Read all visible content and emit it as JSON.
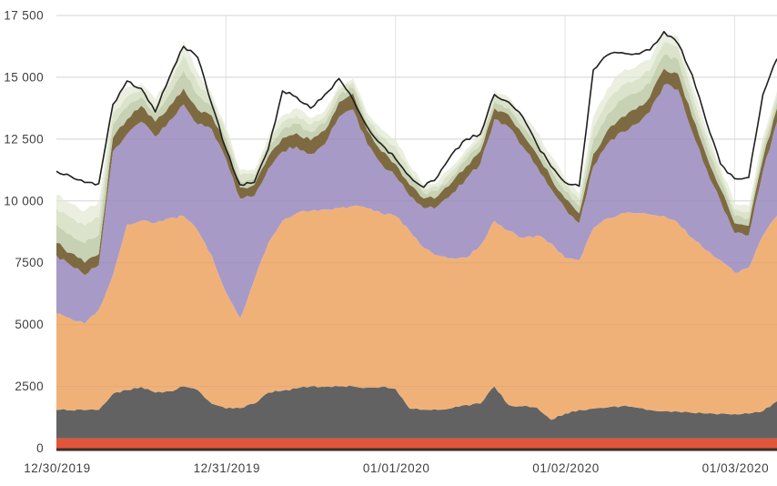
{
  "chart_data": {
    "type": "area",
    "stacked": true,
    "title": "",
    "legend_position": "none",
    "grid": true,
    "ylim": [
      0,
      17958
    ],
    "y_ticks": [
      0,
      2500,
      5000,
      7500,
      10000,
      12500,
      15000,
      17500
    ],
    "y_tick_labels": [
      "0",
      "2500",
      "5000",
      "7500",
      "10 000",
      "12 500",
      "15 000",
      "17 500"
    ],
    "x_tick_labels": [
      "12/30/2019",
      "12/31/2019",
      "01/01/2020",
      "01/02/2020",
      "01/03/2020"
    ],
    "x_tick_indices": [
      0,
      12,
      24,
      36,
      48
    ],
    "samples_per_day": 12,
    "series": [
      {
        "name": "red-band",
        "color": "#e2553a",
        "values": [
          400,
          400,
          400,
          400,
          400,
          400,
          400,
          400,
          400,
          400,
          400,
          400,
          400,
          400,
          400,
          400,
          400,
          400,
          400,
          400,
          400,
          400,
          400,
          400,
          400,
          400,
          400,
          400,
          400,
          400,
          400,
          400,
          400,
          400,
          400,
          400,
          400,
          400,
          400,
          400,
          400,
          400,
          400,
          400,
          400,
          400,
          400,
          400,
          400,
          400,
          400,
          400
        ]
      },
      {
        "name": "dark-gray-band",
        "color": "#626262",
        "values": [
          1150,
          1140,
          1140,
          1150,
          1800,
          1950,
          2080,
          1850,
          1900,
          2100,
          1950,
          1400,
          1200,
          1220,
          1400,
          1850,
          1930,
          2020,
          2100,
          2080,
          2100,
          2100,
          2060,
          2080,
          2000,
          1200,
          1160,
          1150,
          1220,
          1350,
          1400,
          2100,
          1350,
          1300,
          1250,
          750,
          1000,
          1150,
          1200,
          1250,
          1300,
          1250,
          1150,
          1100,
          1080,
          1030,
          1000,
          1000,
          980,
          1000,
          1100,
          1500
        ]
      },
      {
        "name": "orange-band",
        "color": "#f0b179",
        "values": [
          3900,
          3710,
          3500,
          4050,
          4800,
          6700,
          6720,
          6850,
          7000,
          6890,
          6450,
          6000,
          4700,
          3630,
          5000,
          6050,
          6870,
          7080,
          7100,
          7170,
          7200,
          7300,
          7240,
          7020,
          7000,
          7200,
          6540,
          6250,
          6070,
          5950,
          6400,
          6700,
          7050,
          6800,
          6950,
          7150,
          6300,
          6050,
          7300,
          7650,
          7800,
          7850,
          7900,
          7900,
          7620,
          7070,
          6600,
          6200,
          5720,
          5900,
          7100,
          7500
        ]
      },
      {
        "name": "purple-band",
        "color": "#a89ac6",
        "values": [
          2350,
          2150,
          1960,
          1800,
          5000,
          3650,
          4000,
          3500,
          3950,
          4510,
          4300,
          5100,
          5400,
          4850,
          3400,
          3000,
          2800,
          2700,
          2300,
          2650,
          3700,
          3900,
          2600,
          2000,
          1600,
          1400,
          1600,
          2000,
          2610,
          3200,
          3300,
          4100,
          4200,
          3700,
          2800,
          2200,
          2000,
          1500,
          2500,
          3000,
          3300,
          3600,
          4150,
          5300,
          5400,
          4300,
          3300,
          2400,
          1600,
          1300,
          2600,
          3800
        ]
      },
      {
        "name": "brown-band",
        "color": "#7e6a41",
        "values": [
          500,
          500,
          500,
          450,
          550,
          600,
          650,
          600,
          600,
          650,
          600,
          550,
          500,
          450,
          450,
          500,
          550,
          550,
          550,
          550,
          600,
          650,
          550,
          500,
          500,
          450,
          400,
          400,
          450,
          500,
          500,
          450,
          500,
          500,
          500,
          450,
          400,
          400,
          500,
          550,
          600,
          600,
          600,
          650,
          650,
          600,
          550,
          500,
          400,
          400,
          500,
          550
        ]
      },
      {
        "name": "sage-green-band",
        "color": "#c7d1b3",
        "values": [
          740,
          760,
          800,
          800,
          530,
          495,
          340,
          340,
          455,
          720,
          570,
          340,
          305,
          265,
          230,
          305,
          340,
          380,
          340,
          305,
          265,
          230,
          265,
          340,
          380,
          305,
          210,
          210,
          245,
          265,
          265,
          265,
          265,
          305,
          340,
          340,
          305,
          305,
          570,
          645,
          685,
          645,
          570,
          570,
          570,
          495,
          420,
          340,
          305,
          305,
          340,
          265
        ]
      },
      {
        "name": "light-green-band",
        "color": "#dbe3ca",
        "values": [
          645,
          660,
          695,
          695,
          460,
          430,
          295,
          295,
          395,
          625,
          495,
          295,
          265,
          230,
          200,
          265,
          295,
          330,
          295,
          265,
          230,
          200,
          230,
          295,
          330,
          265,
          180,
          180,
          215,
          230,
          230,
          230,
          230,
          265,
          295,
          295,
          265,
          265,
          495,
          560,
          595,
          560,
          495,
          495,
          495,
          430,
          365,
          295,
          265,
          265,
          295,
          230
        ]
      },
      {
        "name": "pale-green-band",
        "color": "#eaefe0",
        "values": [
          565,
          580,
          605,
          605,
          410,
          375,
          265,
          265,
          350,
          555,
          435,
          265,
          230,
          205,
          170,
          230,
          265,
          290,
          265,
          230,
          205,
          170,
          205,
          265,
          290,
          230,
          160,
          160,
          190,
          205,
          205,
          205,
          205,
          230,
          265,
          265,
          230,
          230,
          435,
          495,
          520,
          495,
          435,
          435,
          435,
          375,
          315,
          265,
          230,
          230,
          265,
          205
        ]
      }
    ],
    "line_series": {
      "name": "total-line",
      "color": "#1f1f1f",
      "values": [
        11200,
        11000,
        10750,
        10700,
        13900,
        14850,
        14550,
        13600,
        15000,
        16250,
        15800,
        13900,
        12100,
        10650,
        10750,
        12100,
        14450,
        14200,
        13750,
        14300,
        14950,
        14100,
        13000,
        12300,
        11700,
        11000,
        10550,
        11000,
        11900,
        12500,
        12700,
        14300,
        14000,
        13400,
        12300,
        11400,
        10750,
        10600,
        15300,
        15900,
        16000,
        15950,
        16100,
        16850,
        16350,
        15100,
        13200,
        11500,
        10900,
        10950,
        14300,
        15750
      ]
    },
    "colors": {
      "gridline": "#e2e2e2",
      "axis_line": "#3b2f28",
      "tick_text": "#3f3f3f",
      "background": "#ffffff"
    }
  }
}
